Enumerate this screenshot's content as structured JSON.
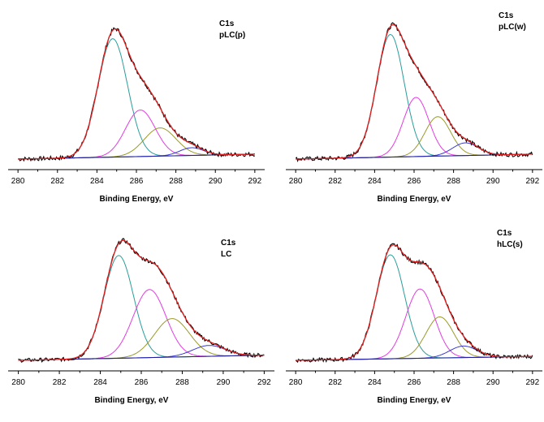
{
  "figure": {
    "panel_ids": [
      "pLCp",
      "pLCw",
      "LC",
      "hLCs"
    ]
  },
  "chart_data": [
    {
      "id": "pLCp",
      "type": "line",
      "title": "",
      "annotation": [
        "C1s",
        "pLC(p)"
      ],
      "xlabel": "Binding Energy, eV",
      "ylabel": "",
      "xlim": [
        279.5,
        292.5
      ],
      "xticks": [
        280,
        282,
        284,
        286,
        288,
        290,
        292
      ],
      "ylim": [
        0,
        1.1
      ],
      "grid": false,
      "baseline": {
        "x": [
          280,
          292
        ],
        "y": [
          0.0,
          0.035
        ]
      },
      "components": [
        {
          "color": "#2a9d9a",
          "center": 284.8,
          "height": 0.84,
          "sigma": 0.75
        },
        {
          "color": "#e23ce2",
          "center": 286.2,
          "height": 0.33,
          "sigma": 0.75
        },
        {
          "color": "#9a9a2a",
          "center": 287.2,
          "height": 0.2,
          "sigma": 0.8
        },
        {
          "color": "#3a3ad0",
          "center": 288.8,
          "height": 0.055,
          "sigma": 0.6
        }
      ],
      "envelope_color": "#e02020",
      "experimental_color": "#000000"
    },
    {
      "id": "pLCw",
      "type": "line",
      "title": "",
      "annotation": [
        "C1s",
        "pLC(w)"
      ],
      "xlabel": "Binding Energy, eV",
      "ylabel": "",
      "xlim": [
        279.5,
        292.5
      ],
      "xticks": [
        280,
        282,
        284,
        286,
        288,
        290,
        292
      ],
      "ylim": [
        0,
        1.1
      ],
      "grid": false,
      "baseline": {
        "x": [
          280,
          292
        ],
        "y": [
          0.0,
          0.035
        ]
      },
      "components": [
        {
          "color": "#2a9d9a",
          "center": 284.8,
          "height": 0.87,
          "sigma": 0.7
        },
        {
          "color": "#e23ce2",
          "center": 286.1,
          "height": 0.42,
          "sigma": 0.65
        },
        {
          "color": "#9a9a2a",
          "center": 287.2,
          "height": 0.28,
          "sigma": 0.65
        },
        {
          "color": "#3a3ad0",
          "center": 288.6,
          "height": 0.09,
          "sigma": 0.65
        }
      ],
      "envelope_color": "#e02020",
      "experimental_color": "#000000"
    },
    {
      "id": "LC",
      "type": "line",
      "title": "",
      "annotation": [
        "C1s",
        "LC"
      ],
      "xlabel": "Binding Energy, eV",
      "ylabel": "",
      "xlim": [
        279.5,
        292.5
      ],
      "xticks": [
        280,
        282,
        284,
        286,
        288,
        290,
        292
      ],
      "ylim": [
        0,
        1.1
      ],
      "grid": false,
      "baseline": {
        "x": [
          280,
          292
        ],
        "y": [
          0.0,
          0.04
        ]
      },
      "components": [
        {
          "color": "#2a9d9a",
          "center": 284.9,
          "height": 0.8,
          "sigma": 0.72
        },
        {
          "color": "#e23ce2",
          "center": 286.4,
          "height": 0.53,
          "sigma": 0.8
        },
        {
          "color": "#9a9a2a",
          "center": 287.5,
          "height": 0.3,
          "sigma": 0.85
        },
        {
          "color": "#3a3ad0",
          "center": 289.3,
          "height": 0.085,
          "sigma": 0.8
        }
      ],
      "envelope_color": "#e02020",
      "experimental_color": "#000000"
    },
    {
      "id": "hLCs",
      "type": "line",
      "title": "",
      "annotation": [
        "C1s",
        "hLC(s)"
      ],
      "xlabel": "Binding Energy, eV",
      "ylabel": "",
      "xlim": [
        279.5,
        292.5
      ],
      "xticks": [
        280,
        282,
        284,
        286,
        288,
        290,
        292
      ],
      "ylim": [
        0,
        1.1
      ],
      "grid": false,
      "baseline": {
        "x": [
          280,
          292
        ],
        "y": [
          0.0,
          0.03
        ]
      },
      "components": [
        {
          "color": "#2a9d9a",
          "center": 284.8,
          "height": 0.81,
          "sigma": 0.72
        },
        {
          "color": "#e23ce2",
          "center": 286.3,
          "height": 0.54,
          "sigma": 0.72
        },
        {
          "color": "#9a9a2a",
          "center": 287.3,
          "height": 0.32,
          "sigma": 0.7
        },
        {
          "color": "#3a3ad0",
          "center": 288.5,
          "height": 0.09,
          "sigma": 0.7
        }
      ],
      "envelope_color": "#e02020",
      "experimental_color": "#000000"
    }
  ]
}
